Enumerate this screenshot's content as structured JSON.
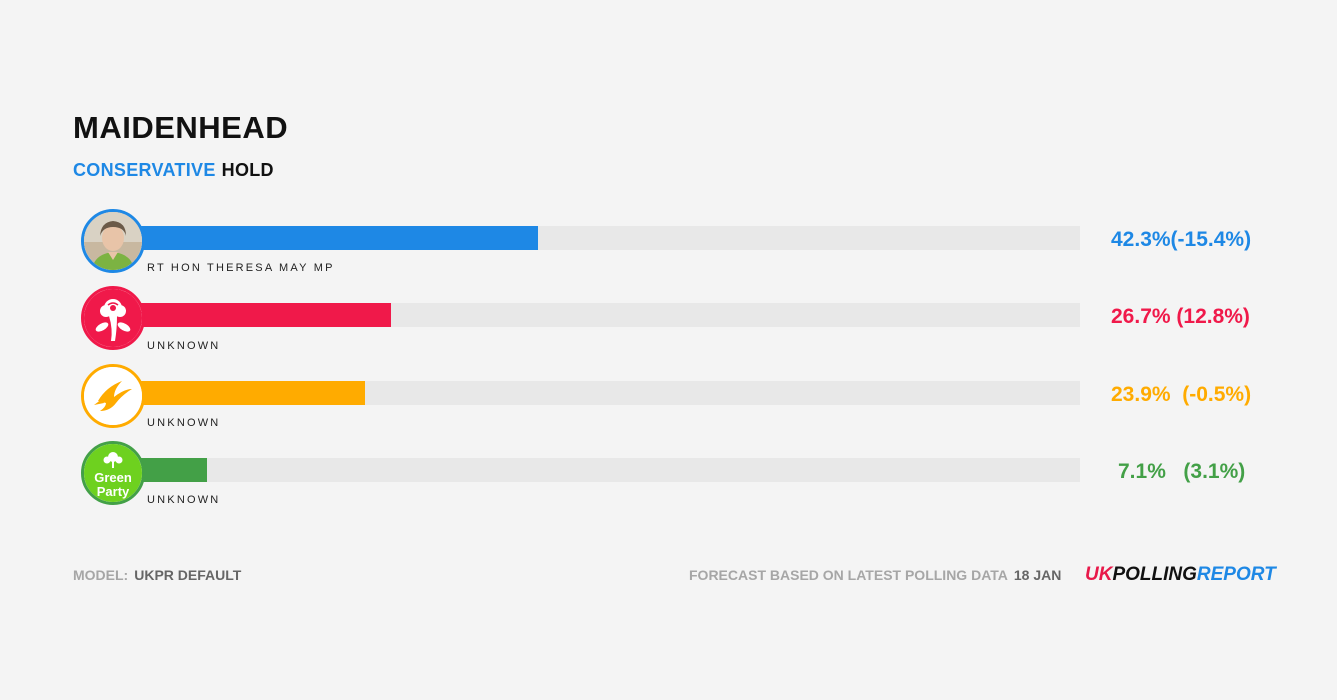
{
  "header": {
    "constituency": "MAIDENHEAD",
    "party": "CONSERVATIVE",
    "result": "HOLD",
    "party_color": "#1e88e5"
  },
  "chart_data": {
    "type": "bar",
    "categories": [
      "RT HON THERESA MAY MP",
      "UNKNOWN",
      "UNKNOWN",
      "UNKNOWN"
    ],
    "series": [
      {
        "values": [
          42.3,
          26.7,
          23.9,
          7.1
        ]
      }
    ],
    "ylim": [
      0,
      100
    ]
  },
  "candidates": [
    {
      "name": "RT HON THERESA MAY MP",
      "share": "42.3%",
      "change": "(-15.4%)",
      "value": 42.3,
      "color": "#1e88e5",
      "icon": "candidate-photo-icon"
    },
    {
      "name": "UNKNOWN",
      "share": "26.7%",
      "change": "(12.8%)",
      "value": 26.7,
      "color": "#f0194a",
      "icon": "labour-rose-icon"
    },
    {
      "name": "UNKNOWN",
      "share": "23.9%",
      "change": "(-0.5%)",
      "value": 23.9,
      "color": "#ffab00",
      "icon": "libdem-bird-icon"
    },
    {
      "name": "UNKNOWN",
      "share": "7.1%",
      "change": "(3.1%)",
      "value": 7.1,
      "color": "#43a047",
      "icon": "green-party-icon"
    }
  ],
  "green_logo": {
    "line1": "Green",
    "line2": "Party"
  },
  "footer": {
    "model_label": "MODEL:",
    "model_value": "UKPR DEFAULT",
    "forecast_label": "FORECAST BASED ON LATEST POLLING DATA",
    "forecast_date": "18 JAN",
    "brand_uk": "UK",
    "brand_polling": "POLLING",
    "brand_report": "REPORT"
  }
}
